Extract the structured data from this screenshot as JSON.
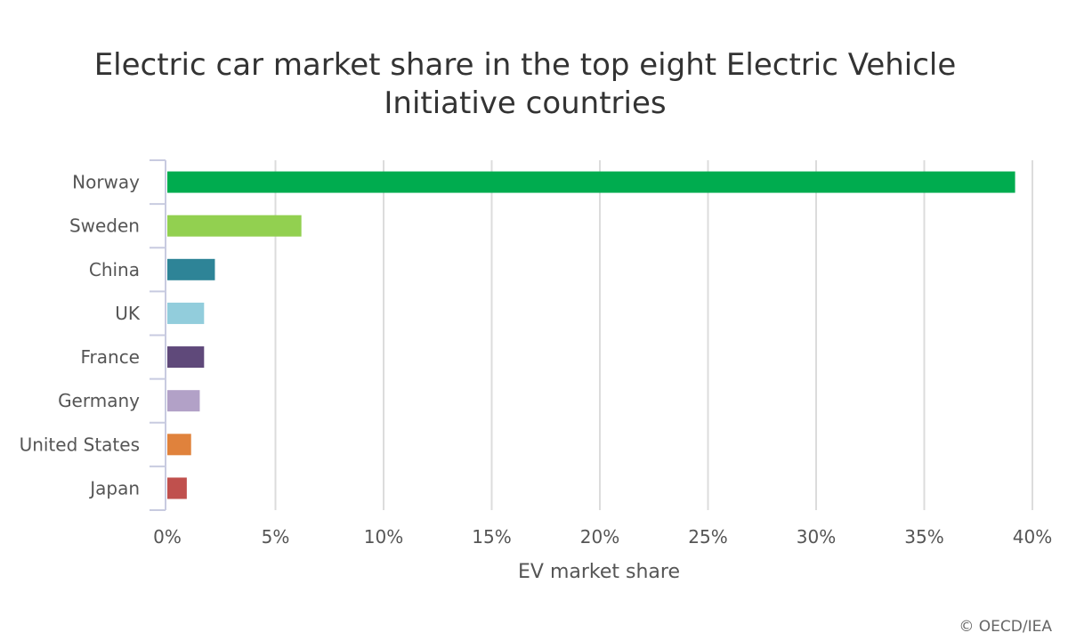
{
  "chart_data": {
    "type": "bar",
    "orientation": "horizontal",
    "title_lines": [
      "Electric car market share in the top eight Electric Vehicle",
      "Initiative countries"
    ],
    "xlabel": "EV market share",
    "ylabel": "",
    "categories": [
      "Norway",
      "Sweden",
      "China",
      "UK",
      "France",
      "Germany",
      "United States",
      "Japan"
    ],
    "values": [
      39.2,
      6.2,
      2.2,
      1.7,
      1.7,
      1.5,
      1.1,
      0.9
    ],
    "colors": [
      "#00ac4f",
      "#92d050",
      "#2e8497",
      "#92cddc",
      "#5f497a",
      "#b2a1c7",
      "#e0823c",
      "#c0504d"
    ],
    "xlim": [
      0,
      40
    ],
    "xticks": [
      "0%",
      "5%",
      "10%",
      "15%",
      "20%",
      "25%",
      "30%",
      "35%",
      "40%"
    ],
    "grid": true,
    "legend": "none"
  },
  "credit": "© OECD/IEA"
}
